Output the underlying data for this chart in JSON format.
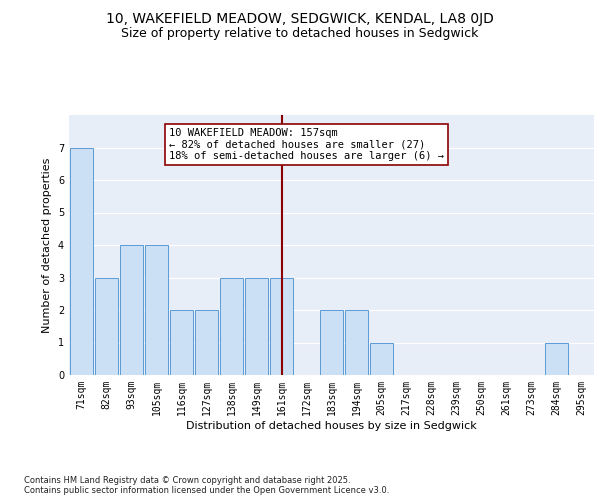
{
  "title": "10, WAKEFIELD MEADOW, SEDGWICK, KENDAL, LA8 0JD",
  "subtitle": "Size of property relative to detached houses in Sedgwick",
  "xlabel": "Distribution of detached houses by size in Sedgwick",
  "ylabel": "Number of detached properties",
  "categories": [
    "71sqm",
    "82sqm",
    "93sqm",
    "105sqm",
    "116sqm",
    "127sqm",
    "138sqm",
    "149sqm",
    "161sqm",
    "172sqm",
    "183sqm",
    "194sqm",
    "205sqm",
    "217sqm",
    "228sqm",
    "239sqm",
    "250sqm",
    "261sqm",
    "273sqm",
    "284sqm",
    "295sqm"
  ],
  "values": [
    7,
    3,
    4,
    4,
    2,
    2,
    3,
    3,
    3,
    0,
    2,
    2,
    1,
    0,
    0,
    0,
    0,
    0,
    0,
    1,
    0
  ],
  "bar_color": "#cce0f5",
  "bar_edge_color": "#5b9bd5",
  "reference_line_index": 8,
  "reference_line_color": "#8b0000",
  "annotation_text": "10 WAKEFIELD MEADOW: 157sqm\n← 82% of detached houses are smaller (27)\n18% of semi-detached houses are larger (6) →",
  "annotation_box_edge_color": "#8b0000",
  "annotation_box_face_color": "white",
  "ylim": [
    0,
    8
  ],
  "yticks": [
    0,
    1,
    2,
    3,
    4,
    5,
    6,
    7
  ],
  "background_color": "#e8eef8",
  "grid_color": "white",
  "title_fontsize": 10,
  "subtitle_fontsize": 9,
  "axis_label_fontsize": 8,
  "tick_fontsize": 7,
  "annotation_fontsize": 7.5,
  "footnote": "Contains HM Land Registry data © Crown copyright and database right 2025.\nContains public sector information licensed under the Open Government Licence v3.0.",
  "footnote_fontsize": 6
}
